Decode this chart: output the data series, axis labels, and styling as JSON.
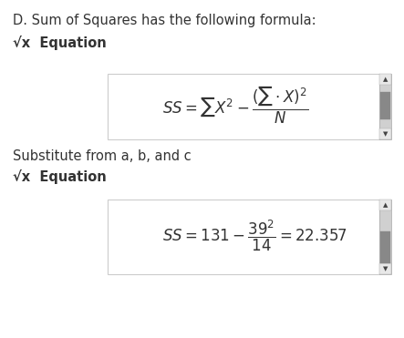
{
  "bg_color": "#ffffff",
  "text_color": "#333333",
  "title_text": "D. Sum of Squares has the following formula:",
  "eq_label": "√x  Equation",
  "sub_text": "Substitute from a, b, and c",
  "eq_label2": "√x  Equation",
  "scrollbar_bg": "#d0d0d0",
  "scrollbar_thumb": "#888888",
  "scrollbar_border": "#aaaaaa",
  "box_border": "#cccccc"
}
